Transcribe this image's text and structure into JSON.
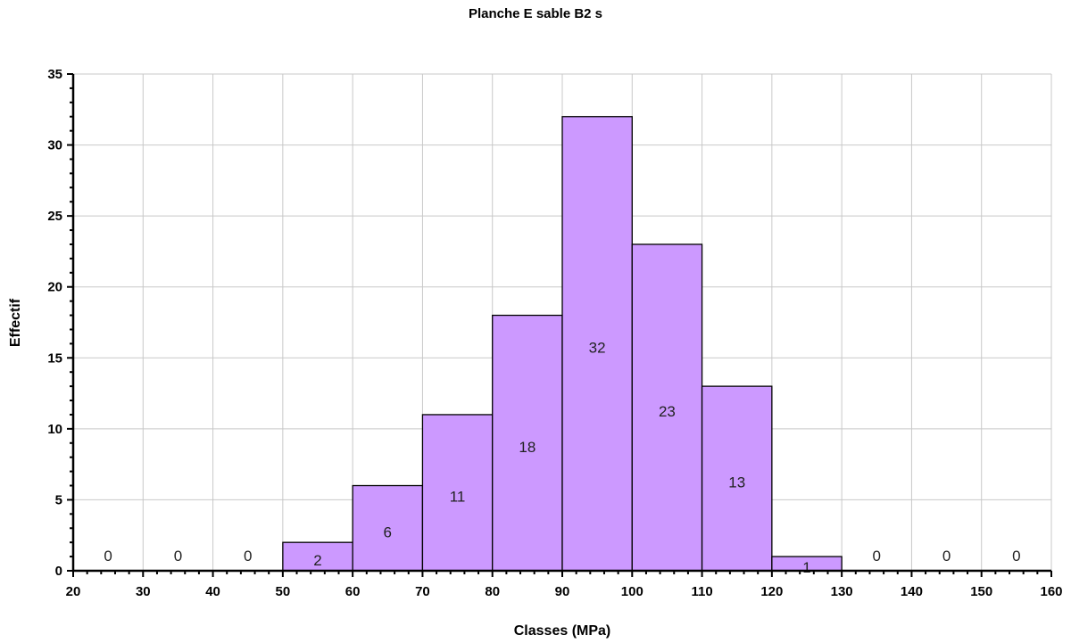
{
  "chart_data": {
    "type": "bar",
    "title": "Planche E sable B2 s",
    "xlabel": "Classes (MPa)",
    "ylabel": "Effectif",
    "bins": [
      {
        "from": 20,
        "to": 30,
        "value": 0
      },
      {
        "from": 30,
        "to": 40,
        "value": 0
      },
      {
        "from": 40,
        "to": 50,
        "value": 0
      },
      {
        "from": 50,
        "to": 60,
        "value": 2
      },
      {
        "from": 60,
        "to": 70,
        "value": 6
      },
      {
        "from": 70,
        "to": 80,
        "value": 11
      },
      {
        "from": 80,
        "to": 90,
        "value": 18
      },
      {
        "from": 90,
        "to": 100,
        "value": 32
      },
      {
        "from": 100,
        "to": 110,
        "value": 23
      },
      {
        "from": 110,
        "to": 120,
        "value": 13
      },
      {
        "from": 120,
        "to": 130,
        "value": 1
      },
      {
        "from": 130,
        "to": 140,
        "value": 0
      },
      {
        "from": 140,
        "to": 150,
        "value": 0
      },
      {
        "from": 150,
        "to": 160,
        "value": 0
      }
    ],
    "xlim": [
      20,
      160
    ],
    "ylim": [
      0,
      35
    ],
    "xticks": [
      20,
      30,
      40,
      50,
      60,
      70,
      80,
      90,
      100,
      110,
      120,
      130,
      140,
      150,
      160
    ],
    "yticks": [
      0,
      5,
      10,
      15,
      20,
      25,
      30,
      35
    ],
    "grid": true,
    "bar_color": "#cc99ff",
    "bar_edge_color": "#000000"
  }
}
